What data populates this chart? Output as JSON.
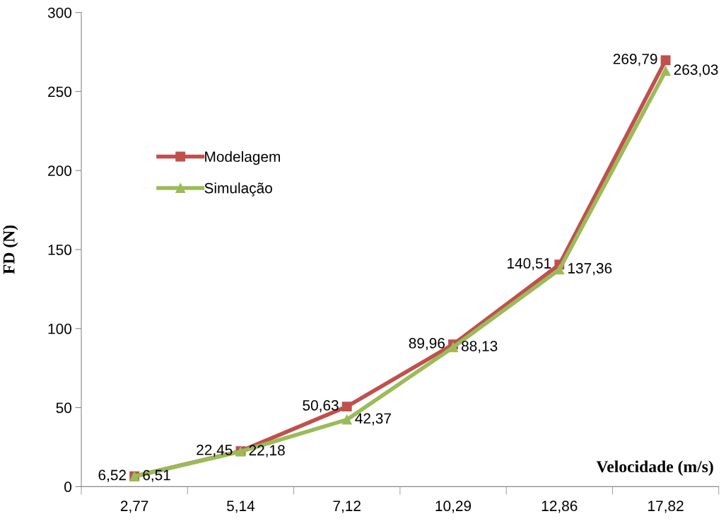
{
  "chart_data": {
    "type": "line",
    "xlabel": "Velocidade (m/s)",
    "ylabel": "FD (N)",
    "categories": [
      "2,77",
      "5,14",
      "7,12",
      "10,29",
      "12,86",
      "17,82"
    ],
    "series": [
      {
        "name": "Modelagem",
        "color": "#c0504d",
        "marker": "square",
        "values": [
          6.52,
          22.45,
          50.63,
          89.96,
          140.51,
          269.79
        ],
        "value_labels": [
          "6,52",
          "22,45",
          "50,63",
          "89,96",
          "140,51",
          "269,79"
        ]
      },
      {
        "name": "Simulação",
        "color": "#9bbb59",
        "marker": "triangle",
        "values": [
          6.51,
          22.18,
          42.37,
          88.13,
          137.36,
          263.03
        ],
        "value_labels": [
          "6,51",
          "22,18",
          "42,37",
          "88,13",
          "137,36",
          "263,03"
        ]
      }
    ],
    "ylim": [
      0,
      300
    ],
    "yticks": [
      0,
      50,
      100,
      150,
      200,
      250,
      300
    ],
    "grid": false,
    "legend": "left",
    "line_style": "solid"
  }
}
